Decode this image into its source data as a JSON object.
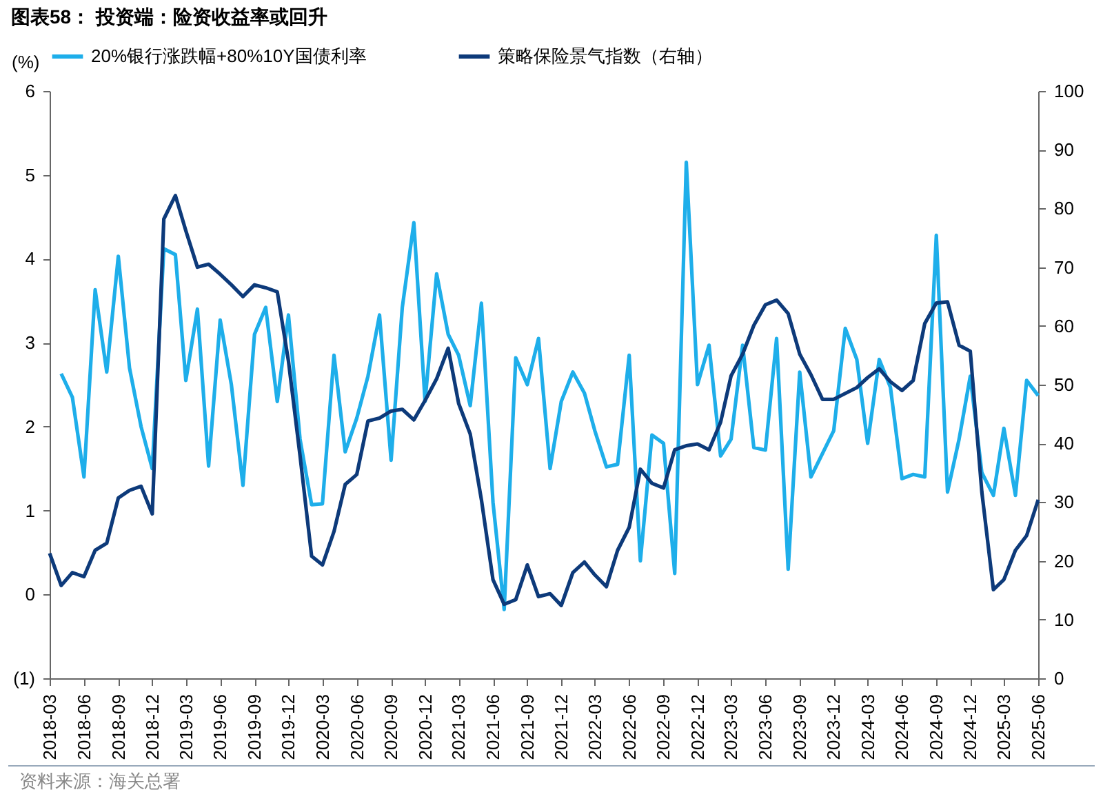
{
  "chart_data": {
    "type": "line",
    "title": "图表58：  投资端：险资收益率或回升",
    "ylabel": "(%)",
    "annotations": [
      "资料来源：海关总署"
    ],
    "x": [
      "2018-03",
      "2018-04",
      "2018-05",
      "2018-06",
      "2018-07",
      "2018-08",
      "2018-09",
      "2018-10",
      "2018-11",
      "2018-12",
      "2019-01",
      "2019-02",
      "2019-03",
      "2019-04",
      "2019-05",
      "2019-06",
      "2019-07",
      "2019-08",
      "2019-09",
      "2019-10",
      "2019-11",
      "2019-12",
      "2020-01",
      "2020-02",
      "2020-03",
      "2020-04",
      "2020-05",
      "2020-06",
      "2020-07",
      "2020-08",
      "2020-09",
      "2020-10",
      "2020-11",
      "2020-12",
      "2021-01",
      "2021-02",
      "2021-03",
      "2021-04",
      "2021-05",
      "2021-06",
      "2021-07",
      "2021-08",
      "2021-09",
      "2021-10",
      "2021-11",
      "2021-12",
      "2022-01",
      "2022-02",
      "2022-03",
      "2022-04",
      "2022-05",
      "2022-06",
      "2022-07",
      "2022-08",
      "2022-09",
      "2022-10",
      "2022-11",
      "2022-12",
      "2023-01",
      "2023-02",
      "2023-03",
      "2023-04",
      "2023-05",
      "2023-06",
      "2023-07",
      "2023-08",
      "2023-09",
      "2023-10",
      "2023-11",
      "2023-12",
      "2024-01",
      "2024-02",
      "2024-03",
      "2024-04",
      "2024-05",
      "2024-06",
      "2024-07",
      "2024-08",
      "2024-09",
      "2024-10",
      "2024-11",
      "2024-12",
      "2025-01",
      "2025-02",
      "2025-03",
      "2025-04",
      "2025-05",
      "2025-06"
    ],
    "xlim": [
      "2018-03",
      "2025-06"
    ],
    "xticks": [
      "2018-03",
      "2018-06",
      "2018-09",
      "2018-12",
      "2019-03",
      "2019-06",
      "2019-09",
      "2019-12",
      "2020-03",
      "2020-06",
      "2020-09",
      "2020-12",
      "2021-03",
      "2021-06",
      "2021-09",
      "2021-12",
      "2022-03",
      "2022-06",
      "2022-09",
      "2022-12",
      "2023-03",
      "2023-06",
      "2023-09",
      "2023-12",
      "2024-03",
      "2024-06",
      "2024-09",
      "2024-12",
      "2025-03",
      "2025-06"
    ],
    "ylim": [
      -1,
      6
    ],
    "yticks": [
      {
        "value": -1,
        "label": "(1)"
      },
      0,
      1,
      2,
      3,
      4,
      5,
      6
    ],
    "y2lim": [
      0,
      100
    ],
    "y2ticks": [
      0,
      10,
      20,
      30,
      40,
      50,
      60,
      70,
      80,
      90,
      100
    ],
    "legend": "top",
    "series": [
      {
        "name": "20%银行涨跌幅+80%10Y国债利率",
        "color": "#1eaeea",
        "values": [
          null,
          2.63,
          2.35,
          1.4,
          3.63,
          2.65,
          4.03,
          2.7,
          2.0,
          1.5,
          4.12,
          4.05,
          2.55,
          3.4,
          1.53,
          3.27,
          2.5,
          1.3,
          3.1,
          3.42,
          2.3,
          3.33,
          1.85,
          1.07,
          1.08,
          2.85,
          1.7,
          2.1,
          2.6,
          3.33,
          1.6,
          3.42,
          4.43,
          2.3,
          3.82,
          3.1,
          2.85,
          2.25,
          3.47,
          1.1,
          -0.18,
          2.82,
          2.5,
          3.05,
          1.5,
          2.3,
          2.65,
          2.4,
          1.95,
          1.52,
          1.55,
          2.85,
          0.4,
          1.9,
          1.8,
          0.25,
          5.15,
          2.5,
          2.97,
          1.65,
          1.85,
          2.97,
          1.75,
          1.72,
          3.05,
          0.3,
          2.65,
          1.4,
          1.68,
          1.95,
          3.17,
          2.8,
          1.8,
          2.8,
          2.47,
          1.38,
          1.43,
          1.4,
          4.28,
          1.22,
          1.85,
          2.6,
          1.45,
          1.18,
          1.98,
          1.18,
          2.55,
          2.37
        ]
      },
      {
        "name": "策略保险景气指数（右轴）",
        "color": "#0d3a7a",
        "axis": "y2",
        "values": [
          21.3,
          15.8,
          18,
          17.3,
          21.8,
          23,
          30.7,
          32,
          32.7,
          28,
          78.2,
          82.2,
          76.2,
          70,
          70.5,
          68.8,
          67,
          65,
          67,
          66.5,
          65.8,
          54,
          37.9,
          20.8,
          19.3,
          25,
          33,
          34.7,
          43.8,
          44.3,
          45.5,
          45.8,
          44,
          47.3,
          51,
          56.2,
          46.8,
          41.6,
          30.4,
          16.8,
          12.6,
          13.4,
          19.3,
          13.9,
          14.4,
          12.4,
          18,
          19.8,
          17.6,
          15.6,
          21.8,
          25.7,
          35.6,
          33.2,
          32.4,
          38.9,
          39.6,
          39.9,
          38.9,
          43.6,
          51.5,
          55.2,
          60.1,
          63.6,
          64.4,
          62.1,
          55.2,
          51.7,
          47.5,
          47.5,
          48.5,
          49.5,
          51.2,
          52.7,
          50.5,
          49,
          50.7,
          60.4,
          63.9,
          64.1,
          56.7,
          55.7,
          31.7,
          15.1,
          16.8,
          21.8,
          24.3,
          30.4
        ]
      }
    ]
  }
}
